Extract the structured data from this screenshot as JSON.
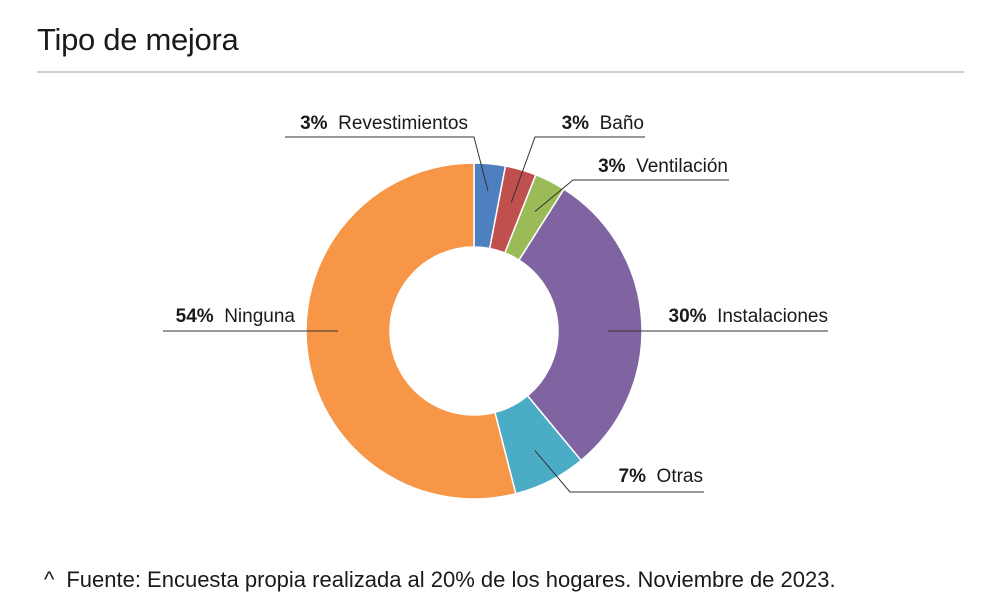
{
  "chart_data": {
    "type": "pie",
    "variant": "donut",
    "title": "Tipo de mejora",
    "slices": [
      {
        "label": "Revestimientos",
        "value": 3,
        "display": "3%",
        "color": "#4e7fbf"
      },
      {
        "label": "Baño",
        "value": 3,
        "display": "3%",
        "color": "#c0504d"
      },
      {
        "label": "Ventilación",
        "value": 3,
        "display": "3%",
        "color": "#9bbb59"
      },
      {
        "label": "Instalaciones",
        "value": 30,
        "display": "30%",
        "color": "#8064a2"
      },
      {
        "label": "Otras",
        "value": 7,
        "display": "7%",
        "color": "#4bacc6"
      },
      {
        "label": "Ninguna",
        "value": 54,
        "display": "54%",
        "color": "#f79646"
      }
    ]
  },
  "footnote": {
    "marker": "^",
    "text": "Fuente: Encuesta propia realizada al 20% de los hogares. Noviembre de 2023."
  }
}
